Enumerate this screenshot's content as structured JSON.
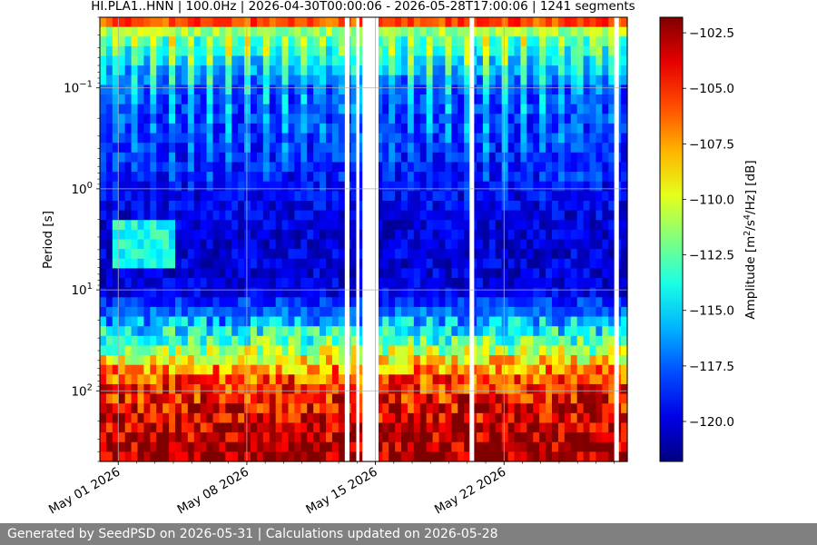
{
  "chart_data": {
    "type": "heatmap",
    "title": "HI.PLA1..HNN | 100.0Hz | 2026-04-30T00:00:06 - 2026-05-28T17:00:06 | 1241 segments",
    "ylabel": "Period [s]",
    "y_scale": "log",
    "y_inverted": true,
    "ylim": [
      0.02,
      500
    ],
    "y_ticks": [
      {
        "value": 0.1,
        "base": "10",
        "exp": "−1"
      },
      {
        "value": 1,
        "base": "10",
        "exp": "0"
      },
      {
        "value": 10,
        "base": "10",
        "exp": "1"
      },
      {
        "value": 100,
        "base": "10",
        "exp": "2"
      }
    ],
    "x_type": "date",
    "xlim": [
      "2026-04-30T00:00:06",
      "2026-05-28T17:00:06"
    ],
    "x_ticks": [
      {
        "date": "2026-05-01",
        "label": "May 01 2026"
      },
      {
        "date": "2026-05-08",
        "label": "May 08 2026"
      },
      {
        "date": "2026-05-15",
        "label": "May 15 2026"
      },
      {
        "date": "2026-05-22",
        "label": "May 22 2026"
      }
    ],
    "grid": true,
    "colorbar": {
      "label_main": "Amplitude [m",
      "label_sup1": "2",
      "label_mid": "/s",
      "label_sup2": "4",
      "label_end": "/Hz] [dB]",
      "min": -121.8,
      "max": -101.8,
      "ticks": [
        {
          "value": -102.5,
          "label": "−102.5"
        },
        {
          "value": -105.0,
          "label": "−105.0"
        },
        {
          "value": -107.5,
          "label": "−107.5"
        },
        {
          "value": -110.0,
          "label": "−110.0"
        },
        {
          "value": -112.5,
          "label": "−112.5"
        },
        {
          "value": -115.0,
          "label": "−115.0"
        },
        {
          "value": -117.5,
          "label": "−117.5"
        },
        {
          "value": -120.0,
          "label": "−120.0"
        }
      ],
      "colormap": "jet"
    },
    "data_gaps": [
      [
        "2026-05-13T08:00:00",
        "2026-05-13T14:00:00"
      ],
      [
        "2026-05-13T23:00:00",
        "2026-05-14T03:00:00"
      ],
      [
        "2026-05-14T07:00:00",
        "2026-05-15T04:00:00"
      ],
      [
        "2026-05-20T03:00:00",
        "2026-05-20T09:00:00"
      ],
      [
        "2026-05-28T00:00:00",
        "2026-05-28T06:00:00"
      ]
    ],
    "levels_by_period": [
      {
        "period": 0.02,
        "db": -103
      },
      {
        "period": 0.03,
        "db": -113
      },
      {
        "period": 0.1,
        "db": -118
      },
      {
        "period": 0.5,
        "db": -119
      },
      {
        "period": 2,
        "db": -120
      },
      {
        "period": 10,
        "db": -120
      },
      {
        "period": 20,
        "db": -116
      },
      {
        "period": 40,
        "db": -111
      },
      {
        "period": 70,
        "db": -106
      },
      {
        "period": 150,
        "db": -104
      },
      {
        "period": 500,
        "db": -102
      }
    ]
  },
  "footer": {
    "text": "Generated by SeedPSD on 2026-05-31 | Calculations updated on 2026-05-28"
  }
}
